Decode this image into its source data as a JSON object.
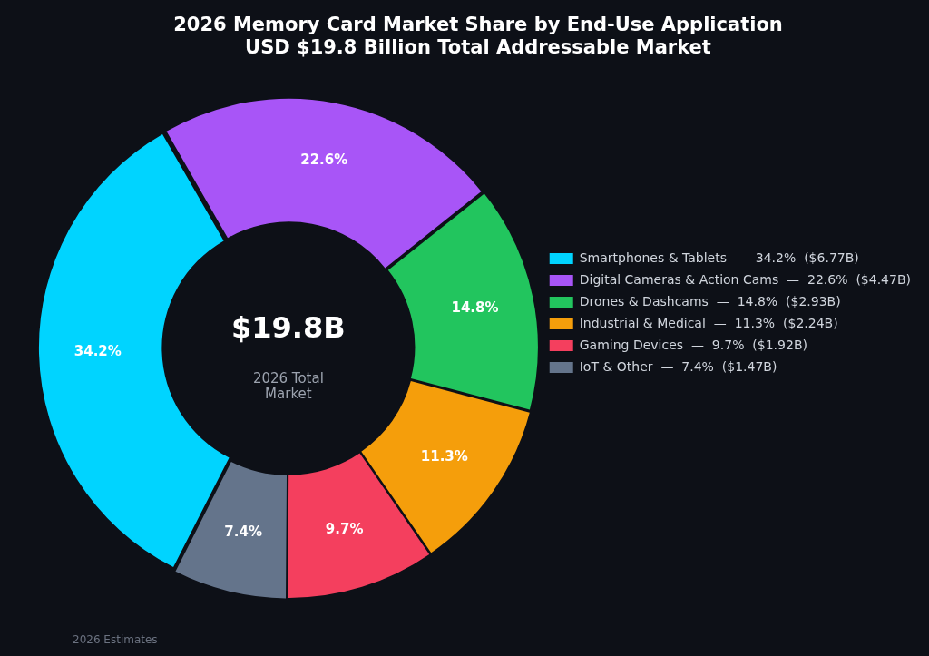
{
  "chart_data": {
    "type": "donut",
    "title": "2026 Memory Card Market Share by End-Use Application",
    "subtitle": "USD $19.8 Billion Total Addressable Market",
    "categories": [
      "Smartphones & Tablets  —  34.2%  ($6.77B)",
      "Digital Cameras & Action Cams  —  22.6%  ($4.47B)",
      "Drones & Dashcams  —  14.8%  ($2.93B)",
      "Industrial & Medical  —  11.3%  ($2.24B)",
      "Gaming Devices  —  9.7%  ($1.92B)",
      "IoT & Other  —  7.4%  ($1.47B)"
    ],
    "values": [
      34.2,
      22.6,
      14.8,
      11.3,
      9.7,
      7.4
    ],
    "colors": [
      "#00d4ff",
      "#a855f7",
      "#22c55e",
      "#f59e0b",
      "#f43f5e",
      "#64748b"
    ],
    "value_labels": [
      "34.2%",
      "22.6%",
      "14.8%",
      "11.3%",
      "9.7%",
      "7.4%"
    ],
    "legend": "right",
    "annotations": [
      "$19.8B",
      "2026 Total\nMarket",
      "2026 Estimates"
    ]
  }
}
